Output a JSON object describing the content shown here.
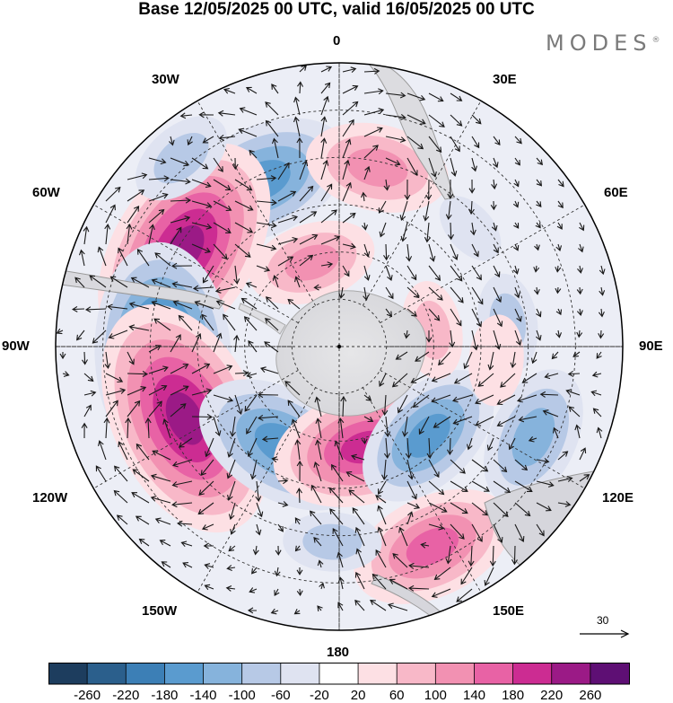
{
  "title": "Base 12/05/2025 00 UTC, valid 16/05/2025 00 UTC",
  "brand": "MODES",
  "brand_mark": "®",
  "longitude_labels": {
    "lon_0": "0",
    "lon_30e": "30E",
    "lon_60e": "60E",
    "lon_90e": "90E",
    "lon_120e": "120E",
    "lon_150e": "150E",
    "lon_180": "180",
    "lon_150w": "150W",
    "lon_120w": "120W",
    "lon_90w": "90W",
    "lon_60w": "60W",
    "lon_30w": "30W"
  },
  "wind_scale_label": "30",
  "colorbar": {
    "colors": [
      "#1d3d5e",
      "#2b5f8c",
      "#3c7fb6",
      "#5a9bcf",
      "#86b3dc",
      "#b7c9e6",
      "#dfe3f1",
      "#ffffff",
      "#fde0e4",
      "#f8b8c8",
      "#f291b2",
      "#e862a5",
      "#cc2c92",
      "#9b1a86",
      "#5e0f74"
    ],
    "tick_labels": [
      "-260",
      "-220",
      "-180",
      "-140",
      "-100",
      "-60",
      "-20",
      "20",
      "60",
      "100",
      "140",
      "180",
      "220",
      "260"
    ]
  },
  "anomaly_features": [
    {
      "name": "a1",
      "lon": -25,
      "colat": 58,
      "value": -170
    },
    {
      "name": "a2",
      "lon": -58,
      "colat": 58,
      "value": 240
    },
    {
      "name": "a3",
      "lon": -93,
      "colat": 56,
      "value": -230
    },
    {
      "name": "a4",
      "lon": -115,
      "colat": 54,
      "value": 250
    },
    {
      "name": "a5",
      "lon": -150,
      "colat": 36,
      "value": -170
    },
    {
      "name": "a6",
      "lon": 165,
      "colat": 33,
      "value": 180
    },
    {
      "name": "a7",
      "lon": 135,
      "colat": 40,
      "value": -140
    },
    {
      "name": "a8",
      "lon": 115,
      "colat": 68,
      "value": -120
    },
    {
      "name": "a9",
      "lon": 155,
      "colat": 70,
      "value": 150
    },
    {
      "name": "a10",
      "lon": 12,
      "colat": 58,
      "value": 120
    },
    {
      "name": "a11",
      "lon": -18,
      "colat": 28,
      "value": 100
    },
    {
      "name": "a12",
      "lon": 82,
      "colat": 54,
      "value": -60
    },
    {
      "name": "a13",
      "lon": 80,
      "colat": 30,
      "value": 60
    },
    {
      "name": "a14",
      "lon": 95,
      "colat": 50,
      "value": 50
    },
    {
      "name": "a15",
      "lon": 48,
      "colat": 56,
      "value": -30
    },
    {
      "name": "a16",
      "lon": -40,
      "colat": 78,
      "value": -70
    },
    {
      "name": "a17",
      "lon": -178,
      "colat": 62,
      "value": -60
    }
  ]
}
